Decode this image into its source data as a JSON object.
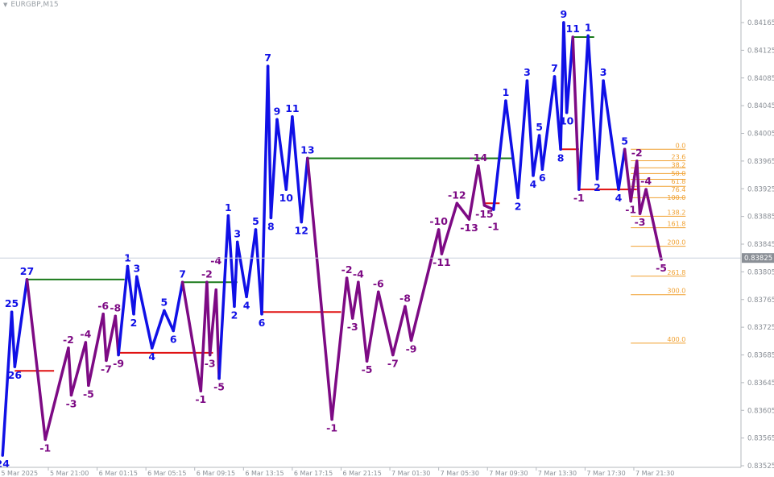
{
  "window": {
    "symbol_title": "EURGBP,M15",
    "menu_icon": "triangle-down-icon"
  },
  "colors": {
    "up_wave": "#1010e6",
    "down_wave": "#7d0a84",
    "resistance": "#1a7a1a",
    "support": "#e01010",
    "fib": "#f0a030",
    "axis_text": "#8a8f96",
    "current_price_bg": "#8a8f96"
  },
  "chart_data": {
    "type": "line",
    "title": "",
    "xlabel": "",
    "ylabel": "",
    "ylim": [
      0.83515,
      0.8419
    ],
    "grid": false,
    "y_ticks": [
      "0.84165",
      "0.84125",
      "0.84085",
      "0.84045",
      "0.84005",
      "0.83965",
      "0.83925",
      "0.83885",
      "0.83845",
      "0.83805",
      "0.83765",
      "0.83725",
      "0.83685",
      "0.83645",
      "0.83605",
      "0.83565",
      "0.83525"
    ],
    "current_price": "0.83825",
    "x_ticks": [
      "5 Mar 2025",
      "5 Mar 21:00",
      "6 Mar 01:15",
      "6 Mar 05:15",
      "6 Mar 09:15",
      "6 Mar 13:15",
      "6 Mar 17:15",
      "6 Mar 21:15",
      "7 Mar 01:30",
      "7 Mar 05:30",
      "7 Mar 09:30",
      "7 Mar 13:30",
      "7 Mar 17:30",
      "7 Mar 21:30"
    ],
    "zigzag": [
      {
        "t": "5 Mar 17:15",
        "p": 0.8354,
        "label": "24",
        "wave": "up"
      },
      {
        "t": "5 Mar 18:00",
        "p": 0.83747,
        "label": "25",
        "wave": "up"
      },
      {
        "t": "5 Mar 18:15",
        "p": 0.83668,
        "label": "26",
        "wave": "up"
      },
      {
        "t": "5 Mar 19:15",
        "p": 0.83794,
        "label": "27",
        "wave": "up"
      },
      {
        "t": "5 Mar 20:45",
        "p": 0.83563,
        "label": "-1",
        "wave": "down"
      },
      {
        "t": "5 Mar 22:45",
        "p": 0.83695,
        "label": "-2",
        "wave": "down"
      },
      {
        "t": "5 Mar 23:00",
        "p": 0.83627,
        "label": "-3",
        "wave": "down"
      },
      {
        "t": "6 Mar 00:15",
        "p": 0.83703,
        "label": "-4",
        "wave": "down"
      },
      {
        "t": "6 Mar 00:30",
        "p": 0.83641,
        "label": "-5",
        "wave": "down"
      },
      {
        "t": "6 Mar 01:45",
        "p": 0.83744,
        "label": "-6",
        "wave": "down"
      },
      {
        "t": "6 Mar 02:00",
        "p": 0.83677,
        "label": "-7",
        "wave": "down"
      },
      {
        "t": "6 Mar 02:45",
        "p": 0.83741,
        "label": "-8",
        "wave": "down"
      },
      {
        "t": "6 Mar 03:00",
        "p": 0.83685,
        "label": "-9",
        "wave": "down"
      },
      {
        "t": "6 Mar 03:45",
        "p": 0.83813,
        "label": "1",
        "wave": "up"
      },
      {
        "t": "6 Mar 04:15",
        "p": 0.83744,
        "label": "2",
        "wave": "up"
      },
      {
        "t": "6 Mar 04:30",
        "p": 0.83798,
        "label": "3",
        "wave": "up"
      },
      {
        "t": "6 Mar 05:45",
        "p": 0.83695,
        "label": "4",
        "wave": "up"
      },
      {
        "t": "6 Mar 06:45",
        "p": 0.83749,
        "label": "5",
        "wave": "up"
      },
      {
        "t": "6 Mar 07:30",
        "p": 0.8372,
        "label": "6",
        "wave": "up"
      },
      {
        "t": "6 Mar 08:15",
        "p": 0.8379,
        "label": "7",
        "wave": "up"
      },
      {
        "t": "6 Mar 09:45",
        "p": 0.83633,
        "label": "-1",
        "wave": "down"
      },
      {
        "t": "6 Mar 10:15",
        "p": 0.8379,
        "label": "-2",
        "wave": "down"
      },
      {
        "t": "6 Mar 10:30",
        "p": 0.83685,
        "label": "-3",
        "wave": "down"
      },
      {
        "t": "6 Mar 11:00",
        "p": 0.83779,
        "label": "-4",
        "wave": "down"
      },
      {
        "t": "6 Mar 11:15",
        "p": 0.83651,
        "label": "-5",
        "wave": "down"
      },
      {
        "t": "6 Mar 12:00",
        "p": 0.83886,
        "label": "1",
        "wave": "up"
      },
      {
        "t": "6 Mar 12:30",
        "p": 0.83755,
        "label": "2",
        "wave": "up"
      },
      {
        "t": "6 Mar 12:45",
        "p": 0.83848,
        "label": "3",
        "wave": "up"
      },
      {
        "t": "6 Mar 13:30",
        "p": 0.83769,
        "label": "4",
        "wave": "up"
      },
      {
        "t": "6 Mar 14:15",
        "p": 0.83866,
        "label": "5",
        "wave": "up"
      },
      {
        "t": "6 Mar 14:45",
        "p": 0.83744,
        "label": "6",
        "wave": "up"
      },
      {
        "t": "6 Mar 15:15",
        "p": 0.84102,
        "label": "7",
        "wave": "up"
      },
      {
        "t": "6 Mar 15:30",
        "p": 0.83883,
        "label": "8",
        "wave": "up"
      },
      {
        "t": "6 Mar 16:00",
        "p": 0.84025,
        "label": "9",
        "wave": "up"
      },
      {
        "t": "6 Mar 16:45",
        "p": 0.83924,
        "label": "10",
        "wave": "up"
      },
      {
        "t": "6 Mar 17:15",
        "p": 0.84029,
        "label": "11",
        "wave": "up"
      },
      {
        "t": "6 Mar 18:00",
        "p": 0.83877,
        "label": "12",
        "wave": "up"
      },
      {
        "t": "6 Mar 18:30",
        "p": 0.83969,
        "label": "13",
        "wave": "up"
      },
      {
        "t": "6 Mar 20:30",
        "p": 0.83592,
        "label": "-1",
        "wave": "down"
      },
      {
        "t": "6 Mar 21:45",
        "p": 0.83796,
        "label": "-2",
        "wave": "down"
      },
      {
        "t": "6 Mar 22:15",
        "p": 0.83738,
        "label": "-3",
        "wave": "down"
      },
      {
        "t": "6 Mar 22:45",
        "p": 0.8379,
        "label": "-4",
        "wave": "down"
      },
      {
        "t": "6 Mar 23:30",
        "p": 0.83676,
        "label": "-5",
        "wave": "down"
      },
      {
        "t": "7 Mar 00:30",
        "p": 0.83776,
        "label": "-6",
        "wave": "down"
      },
      {
        "t": "7 Mar 01:45",
        "p": 0.83685,
        "label": "-7",
        "wave": "down"
      },
      {
        "t": "7 Mar 02:45",
        "p": 0.83755,
        "label": "-8",
        "wave": "down"
      },
      {
        "t": "7 Mar 03:15",
        "p": 0.83706,
        "label": "-9",
        "wave": "down"
      },
      {
        "t": "7 Mar 05:30",
        "p": 0.83866,
        "label": "-10",
        "wave": "down"
      },
      {
        "t": "7 Mar 05:45",
        "p": 0.83831,
        "label": "-11",
        "wave": "down"
      },
      {
        "t": "7 Mar 07:00",
        "p": 0.83904,
        "label": "-12",
        "wave": "down"
      },
      {
        "t": "7 Mar 08:00",
        "p": 0.83881,
        "label": "-13",
        "wave": "down"
      },
      {
        "t": "7 Mar 08:45",
        "p": 0.83958,
        "label": "-14",
        "wave": "down"
      },
      {
        "t": "7 Mar 09:15",
        "p": 0.83901,
        "label": "-15",
        "wave": "down"
      },
      {
        "t": "7 Mar 10:00",
        "p": 0.83895,
        "label": "-1",
        "wave": "down"
      },
      {
        "t": "7 Mar 11:00",
        "p": 0.84052,
        "label": "1",
        "wave": "up"
      },
      {
        "t": "7 Mar 12:00",
        "p": 0.83912,
        "label": "2",
        "wave": "up"
      },
      {
        "t": "7 Mar 12:45",
        "p": 0.84081,
        "label": "3",
        "wave": "up"
      },
      {
        "t": "7 Mar 13:15",
        "p": 0.83944,
        "label": "4",
        "wave": "up"
      },
      {
        "t": "7 Mar 13:45",
        "p": 0.84002,
        "label": "5",
        "wave": "up"
      },
      {
        "t": "7 Mar 14:00",
        "p": 0.83953,
        "label": "6",
        "wave": "up"
      },
      {
        "t": "7 Mar 15:00",
        "p": 0.84087,
        "label": "7",
        "wave": "up"
      },
      {
        "t": "7 Mar 15:30",
        "p": 0.83982,
        "label": "8",
        "wave": "up"
      },
      {
        "t": "7 Mar 15:45",
        "p": 0.84165,
        "label": "9",
        "wave": "up"
      },
      {
        "t": "7 Mar 16:00",
        "p": 0.84035,
        "label": "10",
        "wave": "up"
      },
      {
        "t": "7 Mar 16:30",
        "p": 0.84144,
        "label": "11",
        "wave": "up"
      },
      {
        "t": "7 Mar 17:00",
        "p": 0.83924,
        "label": "-1",
        "wave": "down"
      },
      {
        "t": "7 Mar 17:45",
        "p": 0.84146,
        "label": "1",
        "wave": "up"
      },
      {
        "t": "7 Mar 18:30",
        "p": 0.83939,
        "label": "2",
        "wave": "up"
      },
      {
        "t": "7 Mar 19:00",
        "p": 0.84081,
        "label": "3",
        "wave": "up"
      },
      {
        "t": "7 Mar 20:15",
        "p": 0.83924,
        "label": "4",
        "wave": "up"
      },
      {
        "t": "7 Mar 20:45",
        "p": 0.83982,
        "label": "5",
        "wave": "up"
      },
      {
        "t": "7 Mar 21:15",
        "p": 0.83907,
        "label": "-1",
        "wave": "down"
      },
      {
        "t": "7 Mar 21:45",
        "p": 0.83965,
        "label": "-2",
        "wave": "down"
      },
      {
        "t": "7 Mar 22:00",
        "p": 0.83889,
        "label": "-3",
        "wave": "down"
      },
      {
        "t": "7 Mar 22:30",
        "p": 0.83924,
        "label": "-4",
        "wave": "down"
      },
      {
        "t": "7 Mar 23:45",
        "p": 0.83823,
        "label": "-5",
        "wave": "down"
      }
    ],
    "levels": [
      {
        "type": "resistance",
        "p": 0.83794,
        "from": "5 Mar 19:15",
        "to": "6 Mar 03:30"
      },
      {
        "type": "support",
        "p": 0.83662,
        "from": "5 Mar 18:15",
        "to": "5 Mar 21:30"
      },
      {
        "type": "support",
        "p": 0.83688,
        "from": "6 Mar 03:00",
        "to": "6 Mar 10:45"
      },
      {
        "type": "resistance",
        "p": 0.8379,
        "from": "6 Mar 08:15",
        "to": "6 Mar 12:45"
      },
      {
        "type": "support",
        "p": 0.83747,
        "from": "6 Mar 14:45",
        "to": "6 Mar 21:15"
      },
      {
        "type": "resistance",
        "p": 0.83969,
        "from": "6 Mar 18:30",
        "to": "7 Mar 11:30"
      },
      {
        "type": "support",
        "p": 0.83904,
        "from": "7 Mar 09:15",
        "to": "7 Mar 10:30"
      },
      {
        "type": "resistance",
        "p": 0.84144,
        "from": "7 Mar 16:30",
        "to": "7 Mar 18:15"
      },
      {
        "type": "support",
        "p": 0.83982,
        "from": "7 Mar 15:30",
        "to": "7 Mar 17:00"
      },
      {
        "type": "support",
        "p": 0.83924,
        "from": "7 Mar 17:00",
        "to": "7 Mar 21:45"
      }
    ],
    "fibonacci": {
      "high": 0.83982,
      "low": 0.83912,
      "from": "7 Mar 21:15",
      "to": "8 Mar 01:45",
      "levels": [
        "0.0",
        "23.6",
        "38.2",
        "50.0",
        "61.8",
        "76.4",
        "100.0",
        "138.2",
        "161.8",
        "200.0",
        "261.8",
        "300.0",
        "400.0"
      ]
    }
  }
}
